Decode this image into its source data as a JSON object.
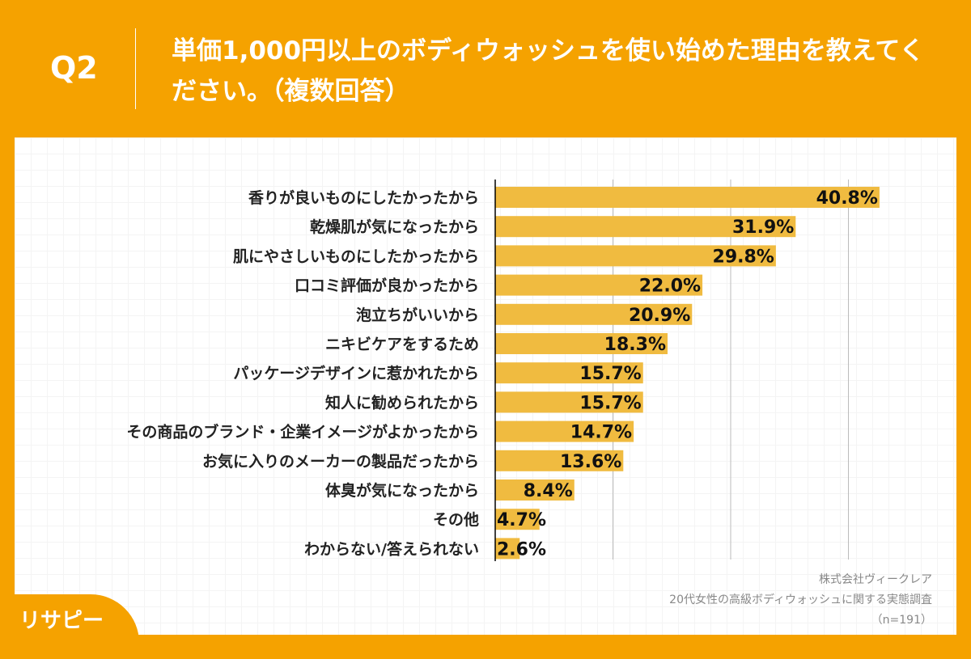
{
  "header": {
    "question": "Q2",
    "title": "単価1,000円以上のボディウォッシュを使い始めた理由を教えてください。（複数回答）"
  },
  "chart_data": {
    "type": "bar",
    "orientation": "horizontal",
    "categories": [
      "香りが良いものにしたかったから",
      "乾燥肌が気になったから",
      "肌にやさしいものにしたかったから",
      "口コミ評価が良かったから",
      "泡立ちがいいから",
      "ニキビケアをするため",
      "パッケージデザインに惹かれたから",
      "知人に勧められたから",
      "その商品のブランド・企業イメージがよかったから",
      "お気に入りのメーカーの製品だったから",
      "体臭が気になったから",
      "その他",
      "わからない/答えられない"
    ],
    "values": [
      40.8,
      31.9,
      29.8,
      22.0,
      20.9,
      18.3,
      15.7,
      15.7,
      14.7,
      13.6,
      8.4,
      4.7,
      2.6
    ],
    "labels": [
      "40.8%",
      "31.9%",
      "29.8%",
      "22.0%",
      "20.9%",
      "18.3%",
      "15.7%",
      "15.7%",
      "14.7%",
      "13.6%",
      "8.4%",
      "4.7%",
      "2.6%"
    ],
    "xlim": [
      0,
      50
    ],
    "grid": true,
    "bar_color": "#f0bb40"
  },
  "source": {
    "company": "株式会社ヴィークレア",
    "survey": "20代女性の高級ボディウォッシュに関する実態調査",
    "n": "（n=191）"
  },
  "logo": "リサピー",
  "colors": {
    "background": "#f5a200"
  }
}
